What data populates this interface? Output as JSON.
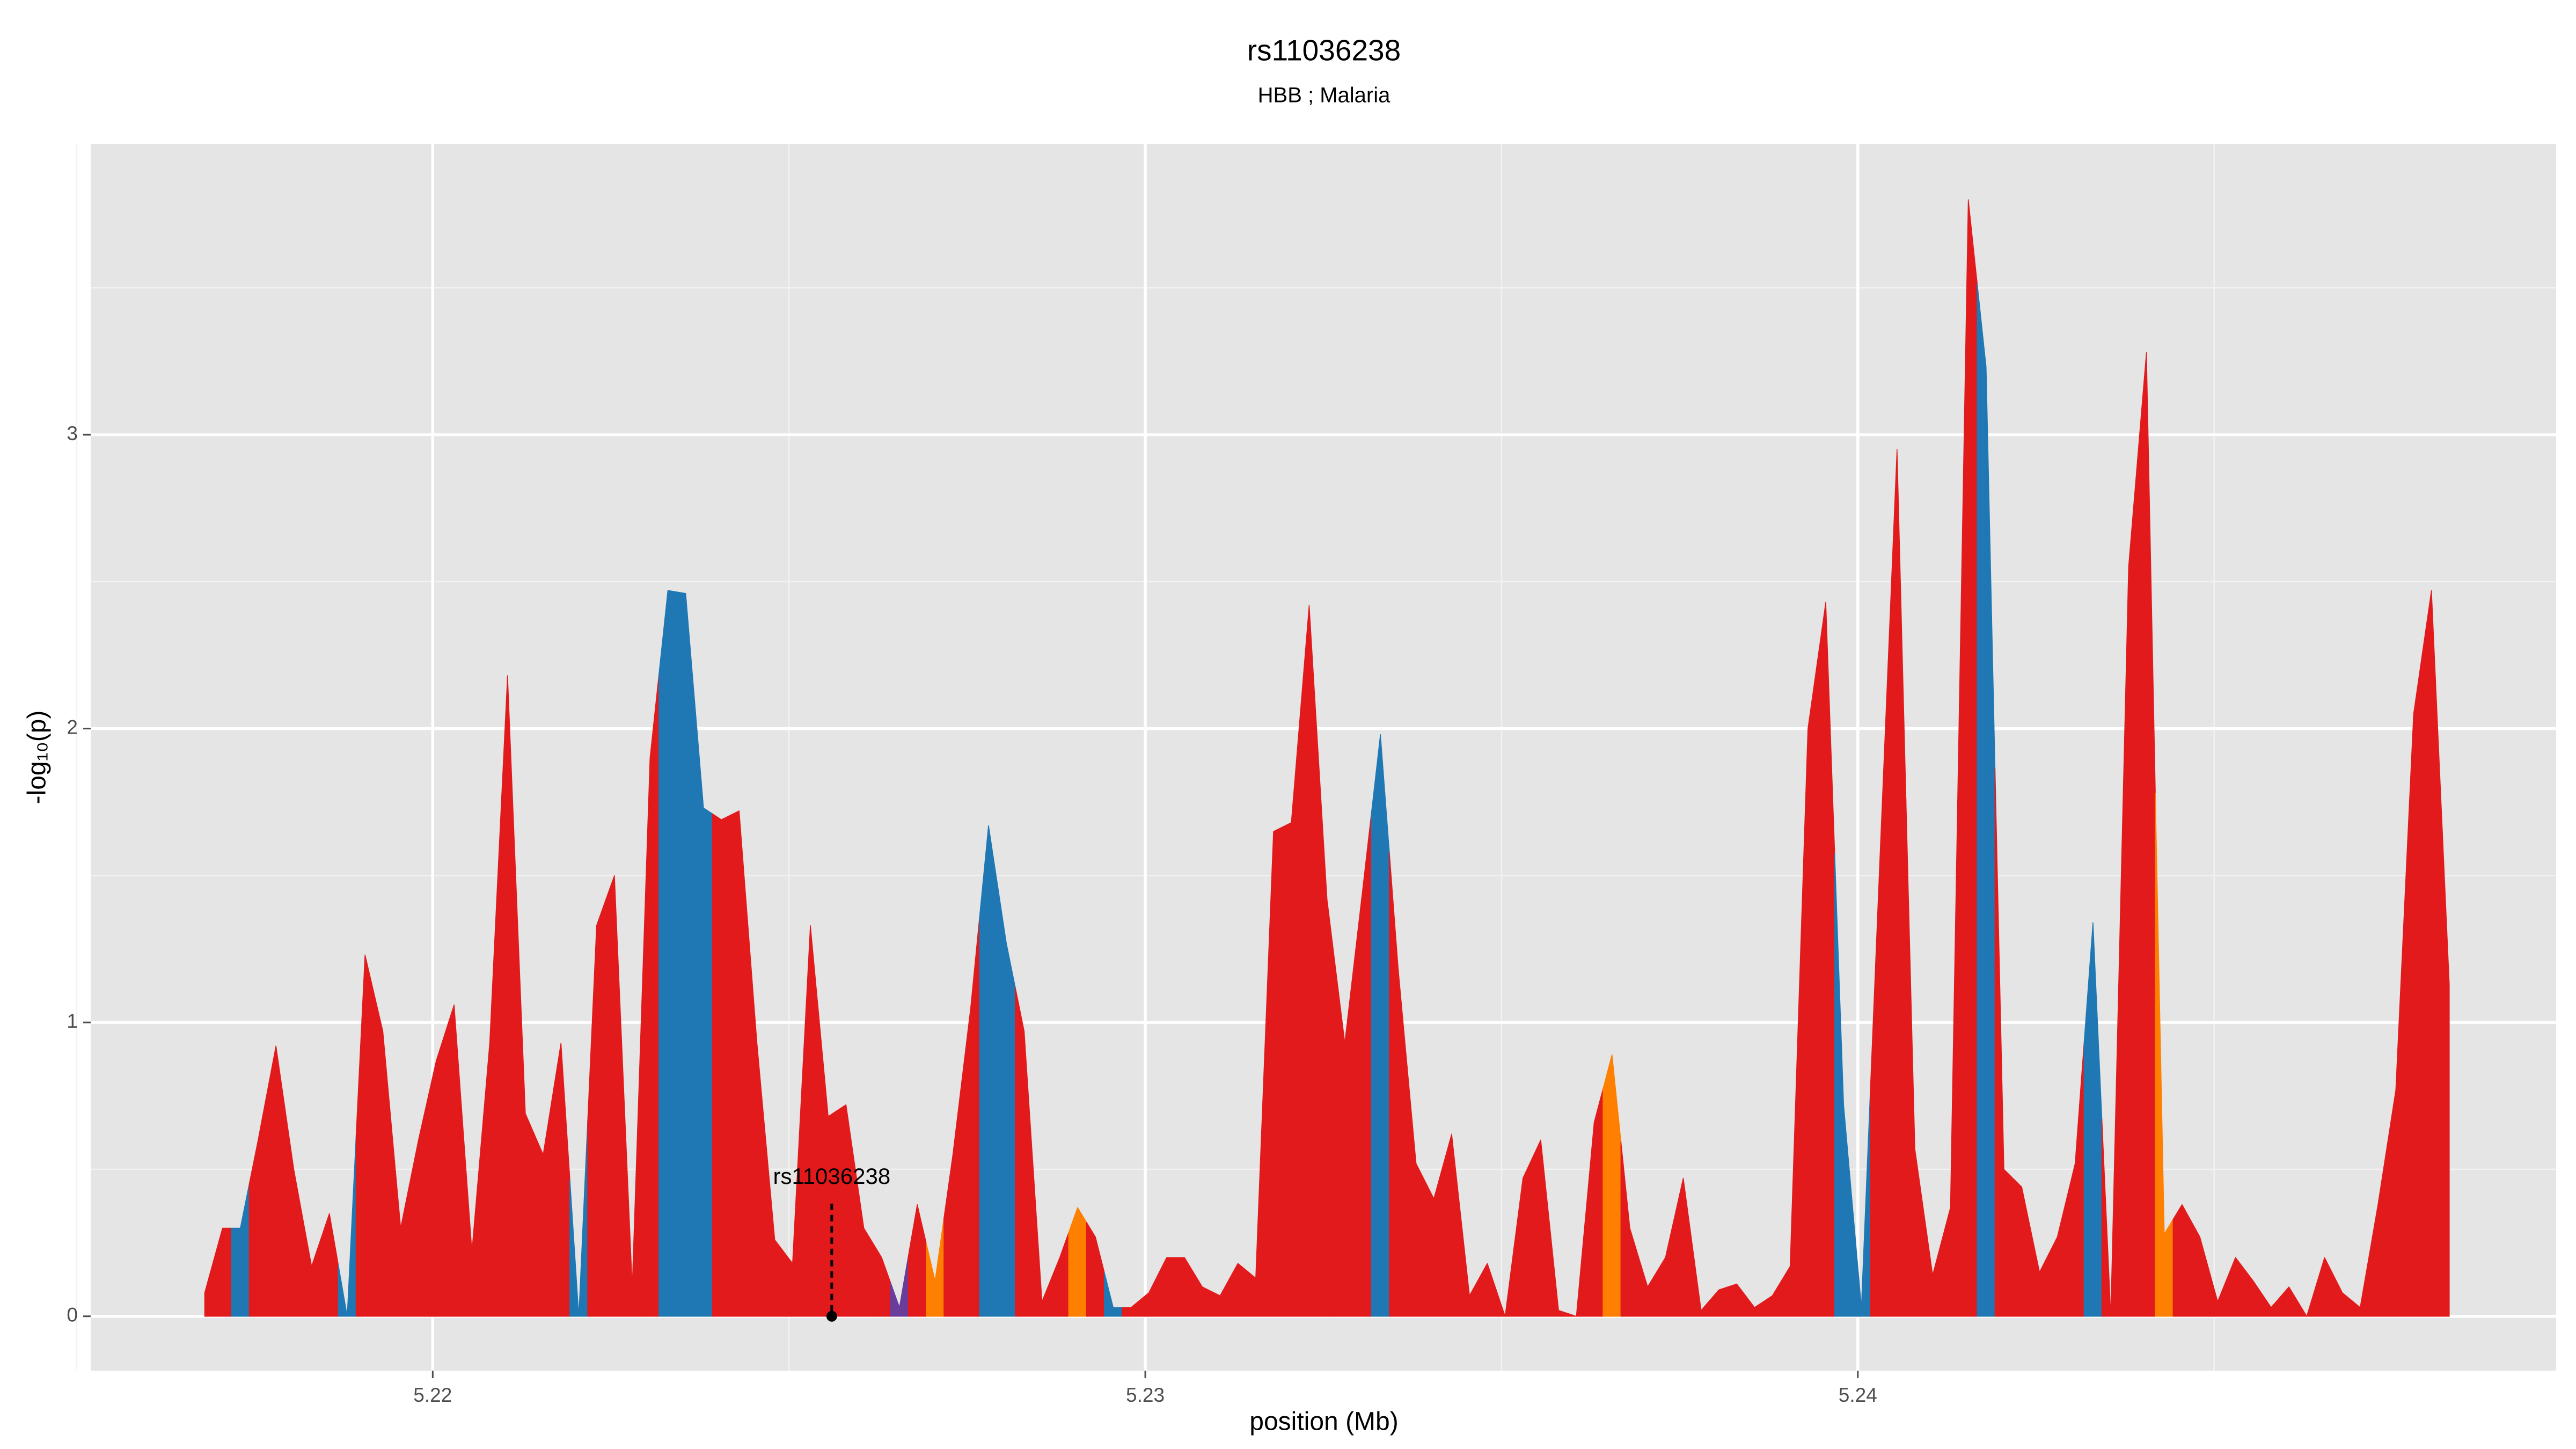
{
  "chart_data": {
    "type": "area",
    "title": "rs11036238",
    "subtitle": "HBB ; Malaria",
    "x_label": "position (Mb)",
    "y_label": "-log₁₀(p)",
    "x": [
      5.2168,
      5.21705,
      5.2173,
      5.21755,
      5.2178,
      5.21805,
      5.2183,
      5.21855,
      5.2188,
      5.21905,
      5.2193,
      5.21955,
      5.2198,
      5.22005,
      5.2203,
      5.22055,
      5.2208,
      5.22105,
      5.2213,
      5.22155,
      5.2218,
      5.22205,
      5.2223,
      5.22255,
      5.2228,
      5.22305,
      5.2233,
      5.22355,
      5.2238,
      5.22405,
      5.2243,
      5.22455,
      5.2248,
      5.22505,
      5.2253,
      5.22555,
      5.2258,
      5.22605,
      5.2263,
      5.22655,
      5.2268,
      5.22705,
      5.2273,
      5.22755,
      5.2278,
      5.22805,
      5.2283,
      5.22855,
      5.2288,
      5.22905,
      5.2293,
      5.22955,
      5.2298,
      5.23005,
      5.2303,
      5.23055,
      5.2308,
      5.23105,
      5.2313,
      5.23155,
      5.2318,
      5.23205,
      5.2323,
      5.23255,
      5.2328,
      5.23305,
      5.2333,
      5.23355,
      5.2338,
      5.23405,
      5.2343,
      5.23455,
      5.2348,
      5.23505,
      5.2353,
      5.23555,
      5.2358,
      5.23605,
      5.2363,
      5.23655,
      5.2368,
      5.23705,
      5.2373,
      5.23755,
      5.2378,
      5.23805,
      5.2383,
      5.23855,
      5.2388,
      5.23905,
      5.2393,
      5.23955,
      5.2398,
      5.24005,
      5.2403,
      5.24055,
      5.2408,
      5.24105,
      5.2413,
      5.24155,
      5.2418,
      5.24205,
      5.2423,
      5.24255,
      5.2428,
      5.24305,
      5.2433,
      5.24355,
      5.2438,
      5.24405,
      5.2443,
      5.24455,
      5.2448,
      5.24505,
      5.2453,
      5.24555,
      5.2458,
      5.24605,
      5.2463,
      5.24655,
      5.2468,
      5.24705,
      5.2473,
      5.24755,
      5.2478,
      5.24805,
      5.2483
    ],
    "values": [
      0.08,
      0.3,
      0.3,
      0.6,
      0.92,
      0.5,
      0.17,
      0.35,
      0,
      1.23,
      0.97,
      0.3,
      0.6,
      0.87,
      1.06,
      0.22,
      0.93,
      2.18,
      0.69,
      0.55,
      0.93,
      0,
      1.33,
      1.5,
      0.1,
      1.9,
      2.47,
      2.46,
      1.73,
      1.69,
      1.72,
      0.93,
      0.26,
      0.18,
      1.33,
      0.68,
      0.72,
      0.3,
      0.2,
      0.03,
      0.38,
      0.12,
      0.55,
      1.05,
      1.67,
      1.27,
      0.97,
      0.05,
      0.2,
      0.37,
      0.27,
      0.03,
      0.03,
      0.08,
      0.2,
      0.2,
      0.1,
      0.07,
      0.18,
      0.13,
      1.65,
      1.68,
      2.42,
      1.42,
      0.93,
      1.45,
      1.98,
      1.18,
      0.52,
      0.4,
      0.62,
      0.07,
      0.18,
      0,
      0.47,
      0.6,
      0.02,
      0,
      0.66,
      0.89,
      0.3,
      0.1,
      0.2,
      0.47,
      0.02,
      0.09,
      0.11,
      0.03,
      0.07,
      0.17,
      2,
      2.43,
      0.72,
      0.03,
      1.5,
      2.95,
      0.57,
      0.14,
      0.37,
      3.8,
      3.23,
      0.5,
      0.44,
      0.15,
      0.27,
      0.52,
      1.34,
      0,
      2.55,
      3.28,
      0.28,
      0.38,
      0.27,
      0.05,
      0.2,
      0.12,
      0.03,
      0.1,
      0,
      0.2,
      0.08,
      0.03,
      0.38,
      0.77,
      2.05,
      2.47,
      1.13
    ],
    "colors": [
      "#e31a1c",
      "#e31a1c",
      "#1f78b4",
      "#e31a1c",
      "#e31a1c",
      "#e31a1c",
      "#e31a1c",
      "#e31a1c",
      "#1f78b4",
      "#e31a1c",
      "#e31a1c",
      "#e31a1c",
      "#e31a1c",
      "#e31a1c",
      "#e31a1c",
      "#e31a1c",
      "#e31a1c",
      "#e31a1c",
      "#e31a1c",
      "#e31a1c",
      "#e31a1c",
      "#1f78b4",
      "#e31a1c",
      "#e31a1c",
      "#e31a1c",
      "#e31a1c",
      "#1f78b4",
      "#1f78b4",
      "#1f78b4",
      "#e31a1c",
      "#e31a1c",
      "#e31a1c",
      "#e31a1c",
      "#e31a1c",
      "#e31a1c",
      "#e31a1c",
      "#e31a1c",
      "#e31a1c",
      "#e31a1c",
      "#6a3d9a",
      "#e31a1c",
      "#ff7f00",
      "#e31a1c",
      "#e31a1c",
      "#1f78b4",
      "#1f78b4",
      "#e31a1c",
      "#e31a1c",
      "#e31a1c",
      "#ff7f00",
      "#e31a1c",
      "#1f78b4",
      "#e31a1c",
      "#e31a1c",
      "#e31a1c",
      "#e31a1c",
      "#e31a1c",
      "#e31a1c",
      "#e31a1c",
      "#e31a1c",
      "#e31a1c",
      "#e31a1c",
      "#e31a1c",
      "#e31a1c",
      "#e31a1c",
      "#e31a1c",
      "#1f78b4",
      "#e31a1c",
      "#e31a1c",
      "#e31a1c",
      "#e31a1c",
      "#e31a1c",
      "#e31a1c",
      "#e31a1c",
      "#e31a1c",
      "#e31a1c",
      "#e31a1c",
      "#e31a1c",
      "#e31a1c",
      "#ff7f00",
      "#e31a1c",
      "#e31a1c",
      "#e31a1c",
      "#e31a1c",
      "#e31a1c",
      "#e31a1c",
      "#e31a1c",
      "#e31a1c",
      "#e31a1c",
      "#e31a1c",
      "#e31a1c",
      "#e31a1c",
      "#1f78b4",
      "#1f78b4",
      "#e31a1c",
      "#e31a1c",
      "#e31a1c",
      "#e31a1c",
      "#e31a1c",
      "#e31a1c",
      "#1f78b4",
      "#e31a1c",
      "#e31a1c",
      "#e31a1c",
      "#e31a1c",
      "#e31a1c",
      "#1f78b4",
      "#e31a1c",
      "#e31a1c",
      "#e31a1c",
      "#ff7f00",
      "#e31a1c",
      "#e31a1c",
      "#e31a1c",
      "#e31a1c",
      "#e31a1c",
      "#e31a1c",
      "#e31a1c",
      "#e31a1c",
      "#e31a1c",
      "#e31a1c",
      "#e31a1c",
      "#e31a1c",
      "#e31a1c",
      "#e31a1c",
      "#e31a1c",
      "#e31a1c"
    ],
    "annotation": {
      "text": "rs11036238",
      "x": 5.2256,
      "y": 0
    },
    "xlim": [
      5.2152,
      5.2498
    ],
    "ylim": [
      -0.185,
      3.99
    ],
    "xticks": [
      5.22,
      5.23,
      5.24
    ],
    "yticks": [
      0,
      1,
      2,
      3
    ],
    "x_minor_grid": [
      5.215,
      5.225,
      5.235,
      5.245
    ],
    "y_minor_grid": [
      0.5,
      1.5,
      2.5,
      3.5
    ],
    "grid": true
  }
}
